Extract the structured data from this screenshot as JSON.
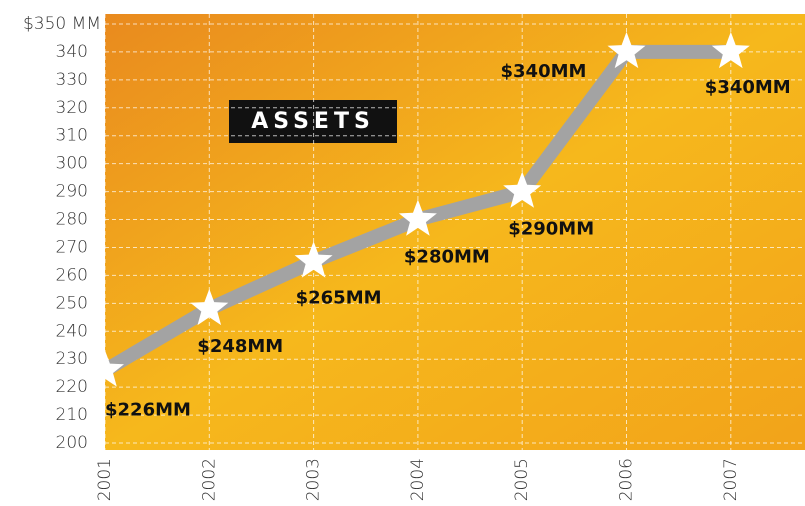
{
  "chart_data": {
    "type": "line",
    "title": "ASSETS",
    "categories": [
      "2001",
      "2002",
      "2003",
      "2004",
      "2005",
      "2006",
      "2007"
    ],
    "series": [
      {
        "name": "Assets",
        "color": "#a3a3a3",
        "values": [
          226,
          248,
          265,
          280,
          290,
          340,
          340
        ],
        "value_labels": [
          "$226MM",
          "$248MM",
          "$265MM",
          "$280MM",
          "$290MM",
          "$340MM",
          "$340MM"
        ]
      }
    ],
    "ylim": [
      200,
      350
    ],
    "yticks": [
      200,
      210,
      220,
      230,
      240,
      250,
      260,
      270,
      280,
      290,
      300,
      310,
      320,
      330,
      340,
      {
        "value": 350,
        "label": "$350 MM"
      }
    ],
    "grid": true
  }
}
